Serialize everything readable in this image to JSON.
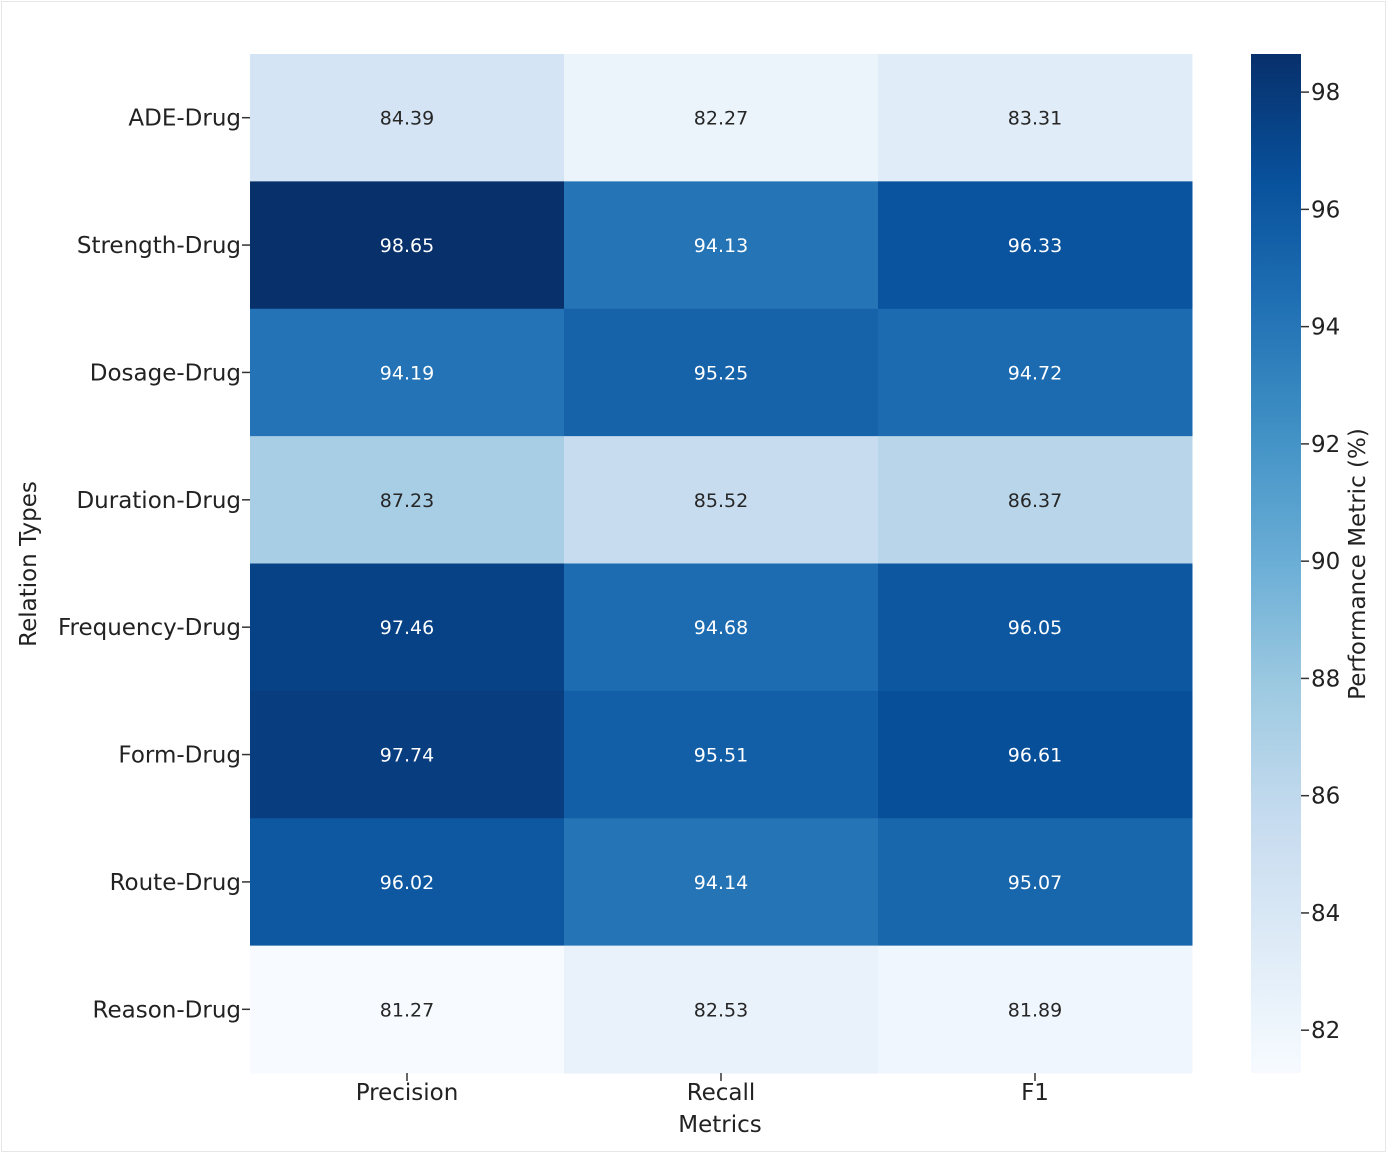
{
  "chart_data": {
    "type": "heatmap",
    "title": "",
    "xlabel": "Metrics",
    "ylabel": "Relation Types",
    "columns": [
      "Precision",
      "Recall",
      "F1"
    ],
    "rows": [
      "ADE-Drug",
      "Strength-Drug",
      "Dosage-Drug",
      "Duration-Drug",
      "Frequency-Drug",
      "Form-Drug",
      "Route-Drug",
      "Reason-Drug"
    ],
    "values": [
      [
        84.39,
        82.27,
        83.31
      ],
      [
        98.65,
        94.13,
        96.33
      ],
      [
        94.19,
        95.25,
        94.72
      ],
      [
        87.23,
        85.52,
        86.37
      ],
      [
        97.46,
        94.68,
        96.05
      ],
      [
        97.74,
        95.51,
        96.61
      ],
      [
        96.02,
        94.14,
        95.07
      ],
      [
        81.27,
        82.53,
        81.89
      ]
    ],
    "cell_labels": [
      [
        "84.39",
        "82.27",
        "83.31"
      ],
      [
        "98.65",
        "94.13",
        "96.33"
      ],
      [
        "94.19",
        "95.25",
        "94.72"
      ],
      [
        "87.23",
        "85.52",
        "86.37"
      ],
      [
        "97.46",
        "94.68",
        "96.05"
      ],
      [
        "97.74",
        "95.51",
        "96.61"
      ],
      [
        "96.02",
        "94.14",
        "95.07"
      ],
      [
        "81.27",
        "82.53",
        "81.89"
      ]
    ],
    "colormap": "Blues",
    "colorbar": {
      "label": "Performance Metric (%)",
      "range": [
        81.27,
        98.65
      ],
      "ticks": [
        82,
        84,
        86,
        88,
        90,
        92,
        94,
        96,
        98
      ],
      "tick_labels": [
        "82",
        "84",
        "86",
        "88",
        "90",
        "92",
        "94",
        "96",
        "98"
      ]
    }
  }
}
